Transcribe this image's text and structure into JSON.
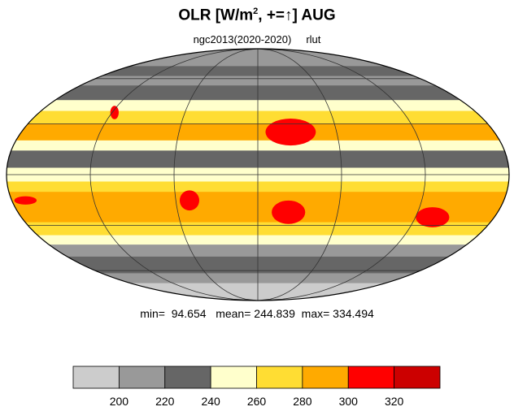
{
  "title": {
    "main": "OLR [W/m",
    "sup": "2",
    "rest": ", +=↑] AUG"
  },
  "subtitle": "ngc2013(2020-2020)     rlut",
  "stats": "min=  94.654   mean= 244.839  max= 334.494",
  "colorbar": {
    "colors": [
      "#cccccc",
      "#999999",
      "#666666",
      "#ffffcc",
      "#ffdd33",
      "#ffaa00",
      "#ff0000",
      "#cc0000"
    ],
    "labels": [
      "200",
      "220",
      "240",
      "260",
      "280",
      "300",
      "320"
    ]
  },
  "map": {
    "projection": "Mollweide",
    "bands": [
      {
        "lat_from": 90,
        "lat_to": 70,
        "color": "#999999"
      },
      {
        "lat_from": 70,
        "lat_to": 62,
        "color": "#666666"
      },
      {
        "lat_from": 62,
        "lat_to": 55,
        "color": "#999999"
      },
      {
        "lat_from": 55,
        "lat_to": 45,
        "color": "#666666"
      },
      {
        "lat_from": 45,
        "lat_to": 38,
        "color": "#ffffcc"
      },
      {
        "lat_from": 38,
        "lat_to": 30,
        "color": "#ffdd33"
      },
      {
        "lat_from": 30,
        "lat_to": 20,
        "color": "#ffaa00"
      },
      {
        "lat_from": 20,
        "lat_to": 14,
        "color": "#ffffcc"
      },
      {
        "lat_from": 14,
        "lat_to": 4,
        "color": "#666666"
      },
      {
        "lat_from": 4,
        "lat_to": -4,
        "color": "#ffffcc"
      },
      {
        "lat_from": -4,
        "lat_to": -10,
        "color": "#ffdd33"
      },
      {
        "lat_from": -10,
        "lat_to": -28,
        "color": "#ffaa00"
      },
      {
        "lat_from": -28,
        "lat_to": -36,
        "color": "#ffdd33"
      },
      {
        "lat_from": -36,
        "lat_to": -42,
        "color": "#ffffcc"
      },
      {
        "lat_from": -42,
        "lat_to": -50,
        "color": "#999999"
      },
      {
        "lat_from": -50,
        "lat_to": -62,
        "color": "#666666"
      },
      {
        "lat_from": -62,
        "lat_to": -70,
        "color": "#999999"
      },
      {
        "lat_from": -70,
        "lat_to": -90,
        "color": "#cccccc"
      }
    ],
    "hotspots": [
      {
        "name": "sahara-arabia",
        "lon": 25,
        "lat": 25,
        "rx": 18,
        "ry": 8,
        "color": "#ff0000"
      },
      {
        "name": "kalahari",
        "lon": 23,
        "lat": -22,
        "rx": 12,
        "ry": 7,
        "color": "#ff0000"
      },
      {
        "name": "australia",
        "lon": 133,
        "lat": -25,
        "rx": 12,
        "ry": 6,
        "color": "#ff0000"
      },
      {
        "name": "brazil",
        "lon": -50,
        "lat": -15,
        "rx": 7,
        "ry": 6,
        "color": "#ff0000"
      },
      {
        "name": "east-pacific",
        "lon": -170,
        "lat": -15,
        "rx": 8,
        "ry": 2.5,
        "color": "#ff0000"
      },
      {
        "name": "california",
        "lon": -118,
        "lat": 37,
        "rx": 3,
        "ry": 4,
        "color": "#ff0000"
      }
    ]
  }
}
